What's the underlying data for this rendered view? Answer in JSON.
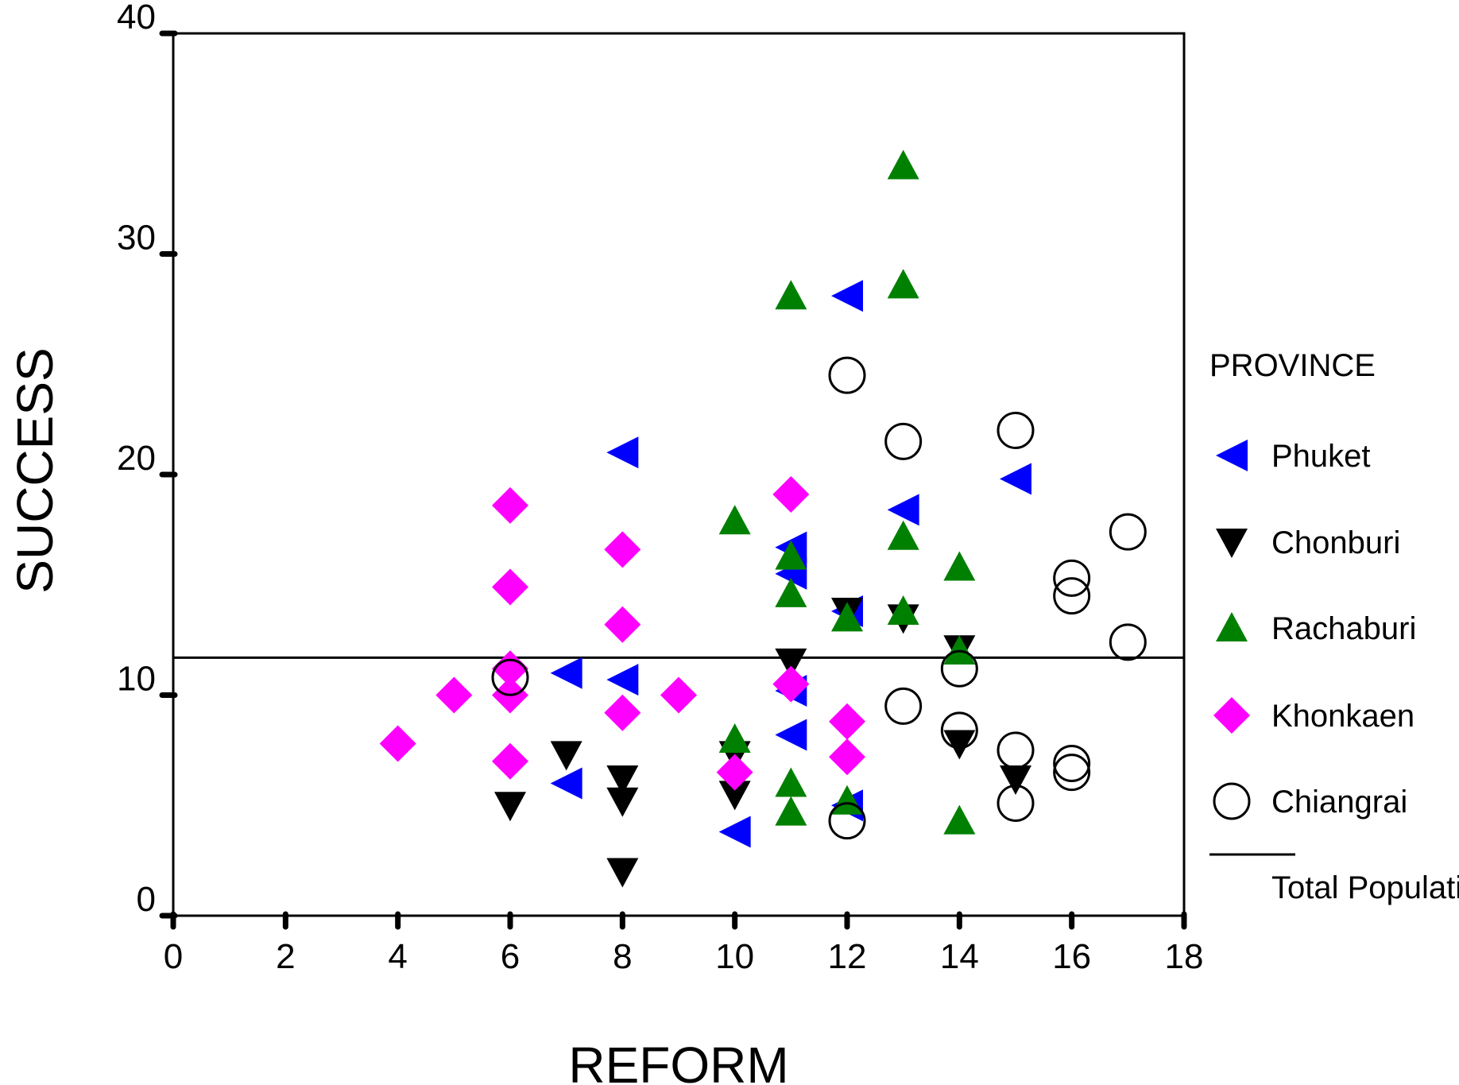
{
  "chart_data": {
    "type": "scatter",
    "xlabel": "REFORM",
    "ylabel": "SUCCESS",
    "xlim": [
      0,
      18
    ],
    "ylim": [
      0,
      40
    ],
    "x_ticks": [
      "0",
      "2",
      "4",
      "6",
      "8",
      "10",
      "12",
      "14",
      "16",
      "18"
    ],
    "y_ticks": [
      "0",
      "10",
      "20",
      "30",
      "40"
    ],
    "grid": false,
    "legend": {
      "title": "PROVINCE",
      "placement": "right"
    },
    "reference_line": {
      "label": "Total Population",
      "y": 11.7
    },
    "series": [
      {
        "name": "Phuket",
        "marker": "triangle-left",
        "color": "#0000ff",
        "points": [
          [
            7,
            6
          ],
          [
            7,
            11
          ],
          [
            8,
            21
          ],
          [
            8,
            10.7
          ],
          [
            10,
            3.8
          ],
          [
            11,
            8.2
          ],
          [
            11,
            10.2
          ],
          [
            11,
            15.5
          ],
          [
            11,
            16.7
          ],
          [
            12,
            28.1
          ],
          [
            12,
            13.8
          ],
          [
            12,
            5
          ],
          [
            13,
            18.4
          ],
          [
            15,
            19.8
          ]
        ]
      },
      {
        "name": "Chonburi",
        "marker": "triangle-down",
        "color": "#000000",
        "points": [
          [
            6,
            5
          ],
          [
            7,
            7.3
          ],
          [
            8,
            6.2
          ],
          [
            8,
            5.2
          ],
          [
            8,
            2
          ],
          [
            10,
            7.3
          ],
          [
            10,
            5.5
          ],
          [
            11,
            11.5
          ],
          [
            12,
            13.8
          ],
          [
            13,
            13.5
          ],
          [
            14,
            12.1
          ],
          [
            14,
            7.8
          ],
          [
            15,
            6.2
          ]
        ]
      },
      {
        "name": "Rachaburi",
        "marker": "triangle-up",
        "color": "#008000",
        "points": [
          [
            10,
            17.9
          ],
          [
            10,
            8
          ],
          [
            11,
            28.1
          ],
          [
            11,
            16.3
          ],
          [
            11,
            14.6
          ],
          [
            11,
            6
          ],
          [
            11,
            4.7
          ],
          [
            12,
            13.5
          ],
          [
            12,
            5.2
          ],
          [
            13,
            34
          ],
          [
            13,
            28.6
          ],
          [
            13,
            17.2
          ],
          [
            13,
            13.8
          ],
          [
            14,
            15.8
          ],
          [
            14,
            12
          ],
          [
            14,
            4.3
          ]
        ]
      },
      {
        "name": "Khonkaen",
        "marker": "diamond",
        "color": "#ff00ff",
        "points": [
          [
            4,
            7.8
          ],
          [
            5,
            10
          ],
          [
            6,
            18.6
          ],
          [
            6,
            14.9
          ],
          [
            6,
            11.2
          ],
          [
            6,
            10
          ],
          [
            6,
            7
          ],
          [
            8,
            16.6
          ],
          [
            8,
            13.2
          ],
          [
            8,
            9.2
          ],
          [
            9,
            10
          ],
          [
            10,
            6.5
          ],
          [
            11,
            19.1
          ],
          [
            11,
            10.5
          ],
          [
            12,
            8.8
          ],
          [
            12,
            7.2
          ]
        ]
      },
      {
        "name": "Chiangrai",
        "marker": "circle-open",
        "color": "#000000",
        "points": [
          [
            6,
            10.8
          ],
          [
            12,
            24.5
          ],
          [
            12,
            4.3
          ],
          [
            13,
            21.5
          ],
          [
            13,
            9.5
          ],
          [
            14,
            11.2
          ],
          [
            14,
            8.4
          ],
          [
            15,
            22
          ],
          [
            15,
            7.5
          ],
          [
            15,
            5.1
          ],
          [
            16,
            15.3
          ],
          [
            16,
            14.5
          ],
          [
            16,
            6.9
          ],
          [
            16,
            6.5
          ],
          [
            17,
            17.4
          ],
          [
            17,
            12.4
          ]
        ]
      }
    ]
  }
}
